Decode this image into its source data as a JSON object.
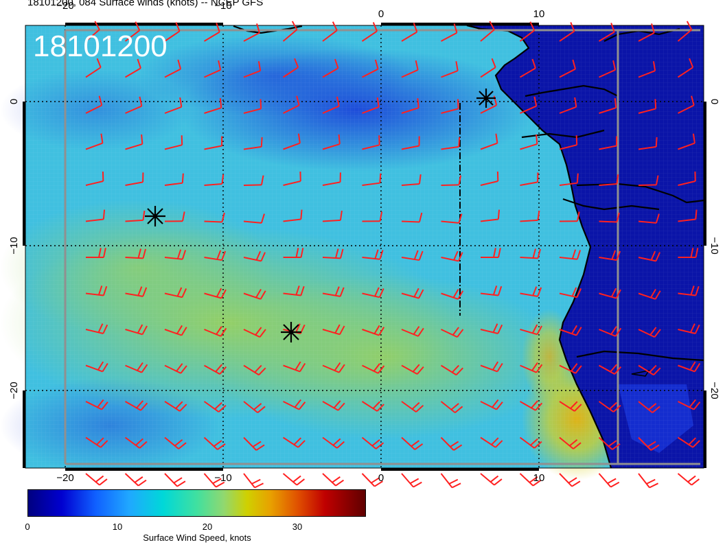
{
  "header": {
    "title": "18101200, 084 Surface winds (knots) -- NCEP GFS"
  },
  "map": {
    "date_stamp": "18101200",
    "lon_top_labels": [
      "−20",
      "−10",
      "0",
      "10"
    ],
    "lon_bottom_labels": [
      "−20",
      "−10",
      "0",
      "10"
    ],
    "lat_left_labels": [
      "0",
      "−10",
      "−20"
    ],
    "lat_right_labels": [
      "0",
      "−10",
      "−20"
    ],
    "colors": {
      "ocean_calm": "#1a40d8",
      "ocean_mid": "#30c8d8",
      "ocean_strong": "#9ed060",
      "jet": "#e8c020",
      "land": "#0a14a0",
      "barb": "#ff2020",
      "coast": "#000000"
    },
    "markers": [
      "asterisk",
      "asterisk",
      "asterisk"
    ]
  },
  "colorbar": {
    "tick_labels": [
      "0",
      "10",
      "20",
      "30"
    ],
    "title": "Surface Wind Speed, knots"
  }
}
